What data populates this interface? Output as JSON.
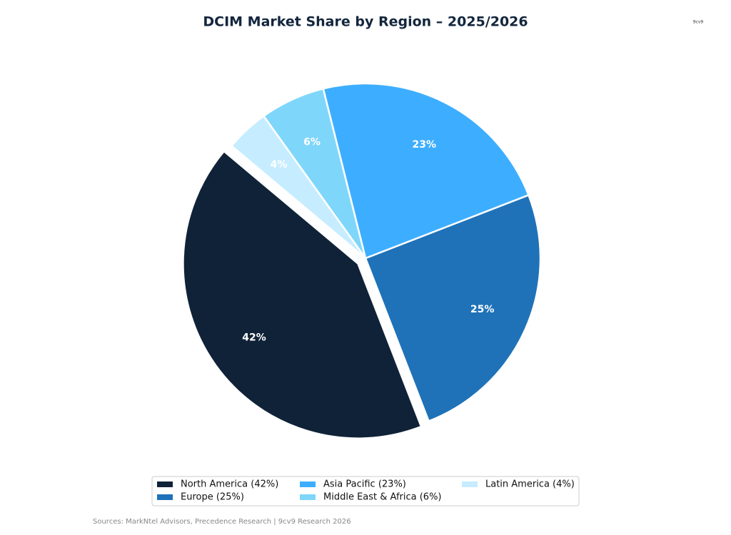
{
  "chart_data": {
    "type": "pie",
    "title": "DCIM Market Share by Region – 2025/2026",
    "categories": [
      "North America",
      "Europe",
      "Asia Pacific",
      "Middle East & Africa",
      "Latin America"
    ],
    "values": [
      42,
      25,
      23,
      6,
      4
    ],
    "value_labels": [
      "42%",
      "25%",
      "23%",
      "6%",
      "4%"
    ],
    "legend_labels": [
      "North America  (42%)",
      "Europe  (25%)",
      "Asia Pacific  (23%)",
      "Middle East & Africa  (6%)",
      "Latin America  (4%)"
    ],
    "colors": [
      "#0f2238",
      "#1f72b8",
      "#3daeff",
      "#7fd6fb",
      "#c6ecff"
    ],
    "explode": [
      true,
      false,
      false,
      false,
      false
    ],
    "legend_position": "bottom",
    "source": "Sources: MarkNtel Advisors, Precedence Research | 9cv9 Research 2026",
    "logo": "9cv9"
  }
}
